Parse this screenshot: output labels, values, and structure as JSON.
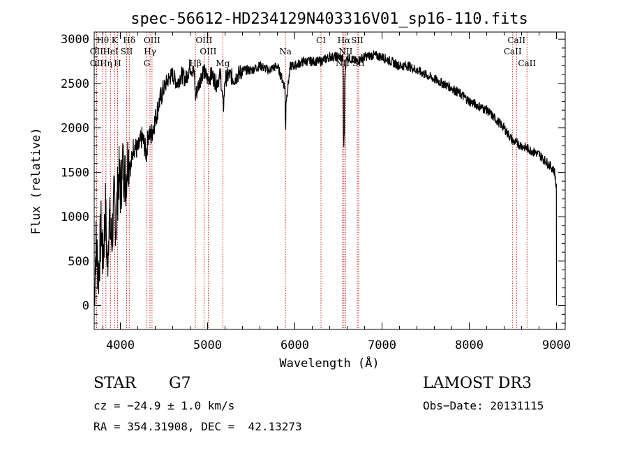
{
  "chart_data": {
    "type": "line",
    "title": "spec-56612-HD234129N403316V01_sp16-110.fits",
    "xlabel": "Wavelength (Å)",
    "ylabel": "Flux (relative)",
    "xlim": [
      3700,
      9100
    ],
    "ylim": [
      -270,
      3080
    ],
    "x_ticks": [
      4000,
      5000,
      6000,
      7000,
      8000,
      9000
    ],
    "y_ticks": [
      0,
      500,
      1000,
      1500,
      2000,
      2500,
      3000
    ],
    "x_tick_labels": [
      "4000",
      "5000",
      "6000",
      "7000",
      "8000",
      "9000"
    ],
    "y_tick_labels": [
      "0",
      "500",
      "1000",
      "1500",
      "2000",
      "2500",
      "3000"
    ],
    "series": [
      {
        "name": "flux",
        "x": [
          3700,
          3720,
          3750,
          3780,
          3800,
          3830,
          3850,
          3870,
          3900,
          3930,
          3950,
          3980,
          4000,
          4030,
          4060,
          4090,
          4120,
          4150,
          4200,
          4250,
          4300,
          4320,
          4350,
          4400,
          4450,
          4500,
          4550,
          4600,
          4650,
          4700,
          4750,
          4800,
          4850,
          4860,
          4900,
          4950,
          5000,
          5050,
          5100,
          5150,
          5180,
          5200,
          5250,
          5300,
          5400,
          5500,
          5600,
          5700,
          5800,
          5890,
          5900,
          5950,
          6000,
          6100,
          6200,
          6300,
          6400,
          6500,
          6550,
          6562,
          6580,
          6600,
          6700,
          6800,
          6900,
          7000,
          7100,
          7200,
          7300,
          7400,
          7500,
          7600,
          7700,
          7800,
          7900,
          8000,
          8100,
          8200,
          8300,
          8400,
          8500,
          8600,
          8700,
          8800,
          8900,
          8950,
          8980,
          9000
        ],
        "y": [
          80,
          700,
          350,
          900,
          500,
          1100,
          400,
          1000,
          700,
          1200,
          900,
          1500,
          1300,
          1600,
          1400,
          1700,
          1550,
          1800,
          1750,
          1900,
          1700,
          1950,
          1900,
          2100,
          2300,
          2450,
          2550,
          2600,
          2500,
          2600,
          2550,
          2700,
          2600,
          2350,
          2500,
          2650,
          2550,
          2600,
          2500,
          2600,
          2200,
          2550,
          2600,
          2550,
          2650,
          2650,
          2700,
          2650,
          2700,
          2450,
          2300,
          2700,
          2700,
          2750,
          2750,
          2750,
          2800,
          2800,
          2780,
          2300,
          2700,
          2800,
          2750,
          2800,
          2820,
          2800,
          2750,
          2700,
          2700,
          2650,
          2600,
          2550,
          2500,
          2450,
          2380,
          2300,
          2250,
          2200,
          2100,
          2000,
          1850,
          1800,
          1750,
          1700,
          1600,
          1550,
          1500,
          1300
        ]
      }
    ],
    "spectral_lines": [
      {
        "name": "Hθ",
        "x": 3798,
        "row": 1
      },
      {
        "name": "K",
        "x": 3934,
        "row": 1
      },
      {
        "name": "Hδ",
        "x": 4102,
        "row": 1
      },
      {
        "name": "OIII",
        "x": 4363,
        "row": 1
      },
      {
        "name": "OIII",
        "x": 4959,
        "row": 1
      },
      {
        "name": "CI",
        "x": 6300,
        "row": 1
      },
      {
        "name": "Hα",
        "x": 6563,
        "row": 1
      },
      {
        "name": "SII",
        "x": 6716,
        "row": 1
      },
      {
        "name": "CaII",
        "x": 8542,
        "row": 1
      },
      {
        "name": "OII",
        "x": 3727,
        "row": 2
      },
      {
        "name": "HeI",
        "x": 3889,
        "row": 2
      },
      {
        "name": "SII",
        "x": 4072,
        "row": 2
      },
      {
        "name": "Hγ",
        "x": 4340,
        "row": 2
      },
      {
        "name": "OIII",
        "x": 5007,
        "row": 2
      },
      {
        "name": "Na",
        "x": 5893,
        "row": 2
      },
      {
        "name": "NII",
        "x": 6583,
        "row": 2
      },
      {
        "name": "CaII",
        "x": 8498,
        "row": 2
      },
      {
        "name": "OII",
        "x": 3727,
        "row": 3
      },
      {
        "name": "Hη",
        "x": 3835,
        "row": 3
      },
      {
        "name": "H",
        "x": 3968,
        "row": 3
      },
      {
        "name": "G",
        "x": 4304,
        "row": 3
      },
      {
        "name": "Hβ",
        "x": 4861,
        "row": 3
      },
      {
        "name": "Mg",
        "x": 5175,
        "row": 3
      },
      {
        "name": "NII",
        "x": 6548,
        "row": 3
      },
      {
        "name": "SII",
        "x": 6731,
        "row": 3
      },
      {
        "name": "CaII",
        "x": 8662,
        "row": 3
      }
    ],
    "line_color": "#000000",
    "marker_color": "#cc0000"
  },
  "info": {
    "object_class": "STAR",
    "subclass": "G7",
    "survey": "LAMOST DR3",
    "redshift": "cz = −24.9 ± 1.0 km/s",
    "obs_date": "Obs−Date: 20131115",
    "coords": "RA = 354.31908, DEC =  42.13273"
  }
}
